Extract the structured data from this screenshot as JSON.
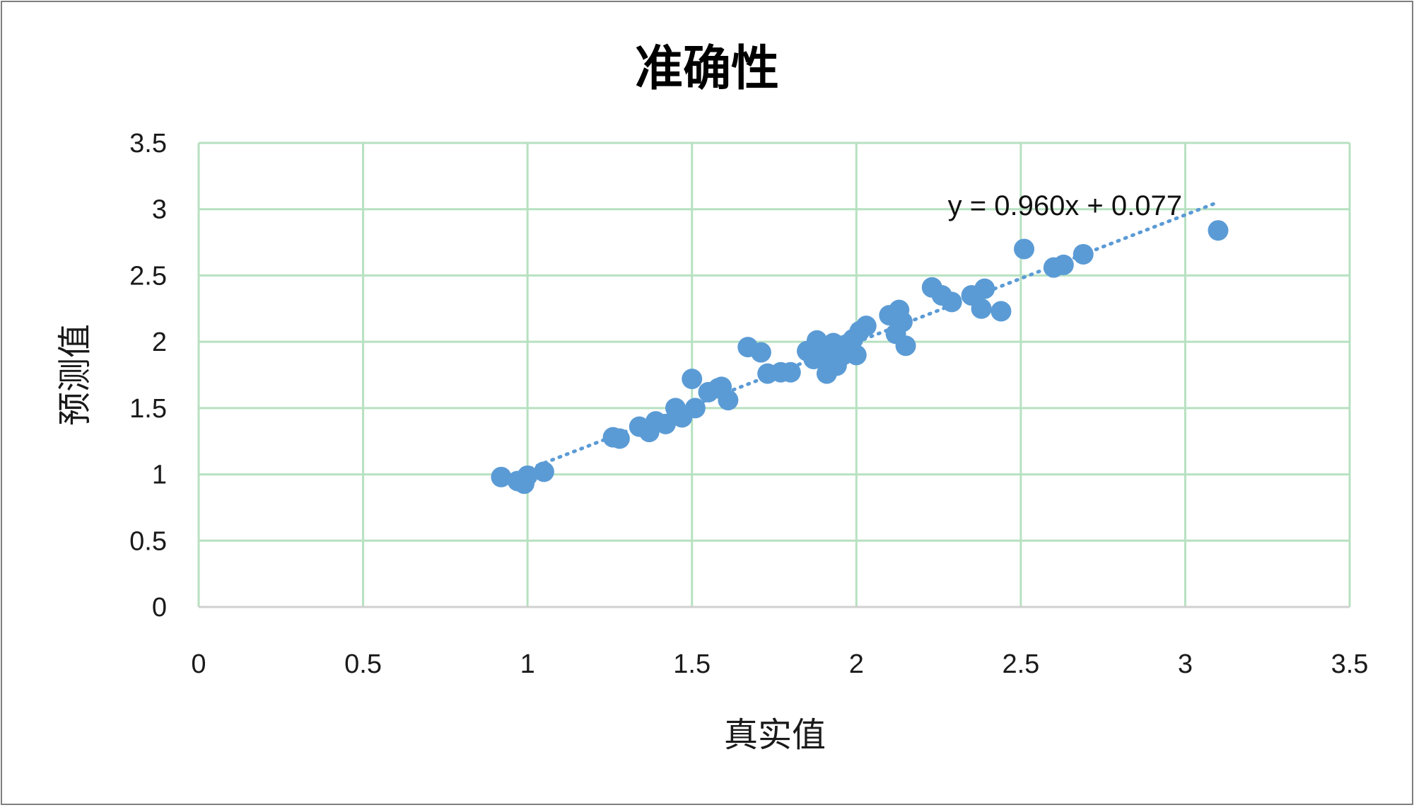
{
  "chart_data": {
    "type": "scatter",
    "title": "准确性",
    "xlabel": "真实值",
    "ylabel": "预测值",
    "xlim": [
      0,
      3.5
    ],
    "ylim": [
      0,
      3.5
    ],
    "xticks": [
      "0",
      "0.5",
      "1",
      "1.5",
      "2",
      "2.5",
      "3",
      "3.5"
    ],
    "yticks": [
      "0",
      "0.5",
      "1",
      "1.5",
      "2",
      "2.5",
      "3",
      "3.5"
    ],
    "grid": true,
    "legend": "none",
    "series": [
      {
        "x": [
          0.92,
          0.97,
          0.99,
          1.0,
          1.05,
          1.26,
          1.28,
          1.34,
          1.37,
          1.39,
          1.42,
          1.45,
          1.47,
          1.5,
          1.51,
          1.55,
          1.58,
          1.59,
          1.61,
          1.67,
          1.71,
          1.73,
          1.77,
          1.8,
          1.85,
          1.87,
          1.88,
          1.89,
          1.9,
          1.91,
          1.92,
          1.93,
          1.94,
          1.95,
          1.96,
          1.97,
          1.98,
          1.99,
          2.0,
          2.01,
          2.03,
          2.1,
          2.12,
          2.13,
          2.14,
          2.15,
          2.23,
          2.26,
          2.29,
          2.35,
          2.38,
          2.39,
          2.44,
          2.51,
          2.6,
          2.63,
          2.69,
          3.1
        ],
        "y": [
          0.98,
          0.95,
          0.93,
          0.99,
          1.02,
          1.28,
          1.27,
          1.36,
          1.32,
          1.4,
          1.38,
          1.5,
          1.43,
          1.72,
          1.5,
          1.62,
          1.65,
          1.66,
          1.56,
          1.96,
          1.92,
          1.76,
          1.77,
          1.77,
          1.93,
          1.87,
          2.01,
          1.92,
          1.95,
          1.76,
          1.86,
          1.99,
          1.82,
          1.97,
          1.9,
          1.98,
          1.95,
          2.02,
          1.9,
          2.08,
          2.12,
          2.2,
          2.06,
          2.24,
          2.15,
          1.97,
          2.41,
          2.35,
          2.3,
          2.35,
          2.25,
          2.4,
          2.23,
          2.7,
          2.56,
          2.58,
          2.66,
          2.84
        ]
      }
    ],
    "trendline": {
      "type": "linear",
      "slope": 0.96,
      "intercept": 0.077,
      "x_range": [
        0.92,
        3.1
      ],
      "label": "y = 0.960x + 0.077"
    },
    "colors": {
      "marker": "#5b9bd5",
      "trendline": "#5b9bd5",
      "grid": "#b7e1c1",
      "frame": "#7f7f7f"
    }
  }
}
